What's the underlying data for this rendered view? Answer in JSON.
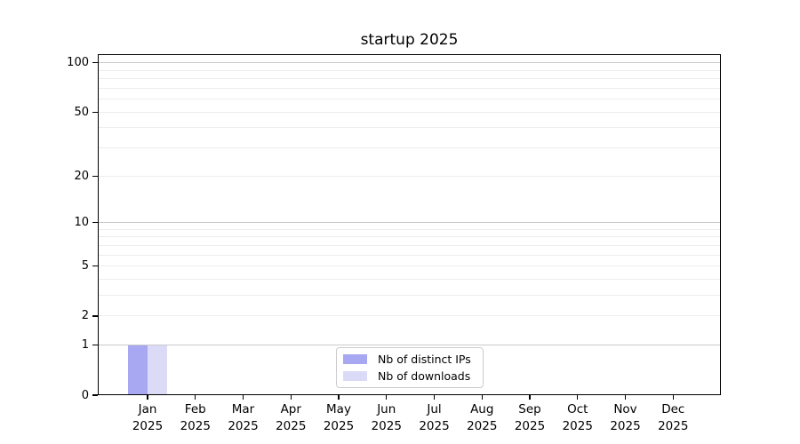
{
  "chart_data": {
    "type": "bar",
    "title": "startup 2025",
    "categories": [
      "Jan",
      "Feb",
      "Mar",
      "Apr",
      "May",
      "Jun",
      "Jul",
      "Aug",
      "Sep",
      "Oct",
      "Nov",
      "Dec"
    ],
    "category_year": "2025",
    "series": [
      {
        "name": "Nb of distinct IPs",
        "color": "#a7a7f2",
        "values": [
          1,
          0,
          0,
          0,
          0,
          0,
          0,
          0,
          0,
          0,
          0,
          0
        ]
      },
      {
        "name": "Nb of downloads",
        "color": "#dbdbf8",
        "values": [
          1,
          0,
          0,
          0,
          0,
          0,
          0,
          0,
          0,
          0,
          0,
          0
        ]
      }
    ],
    "y_axis": {
      "scale": "log1p",
      "min": 0,
      "max": 113,
      "tick_labels": [
        100,
        50,
        20,
        10,
        5,
        2,
        1,
        0
      ],
      "major_gridlines": [
        1,
        10,
        100
      ],
      "minor_gridlines": [
        2,
        3,
        4,
        5,
        6,
        7,
        8,
        9,
        20,
        30,
        40,
        50,
        60,
        70,
        80,
        90
      ]
    },
    "legend": {
      "position": "bottom-center"
    },
    "styles": {
      "major_grid_color": "#c9c9c9",
      "minor_grid_color": "#ededed",
      "spine_color": "#000000",
      "background": "#ffffff"
    }
  }
}
